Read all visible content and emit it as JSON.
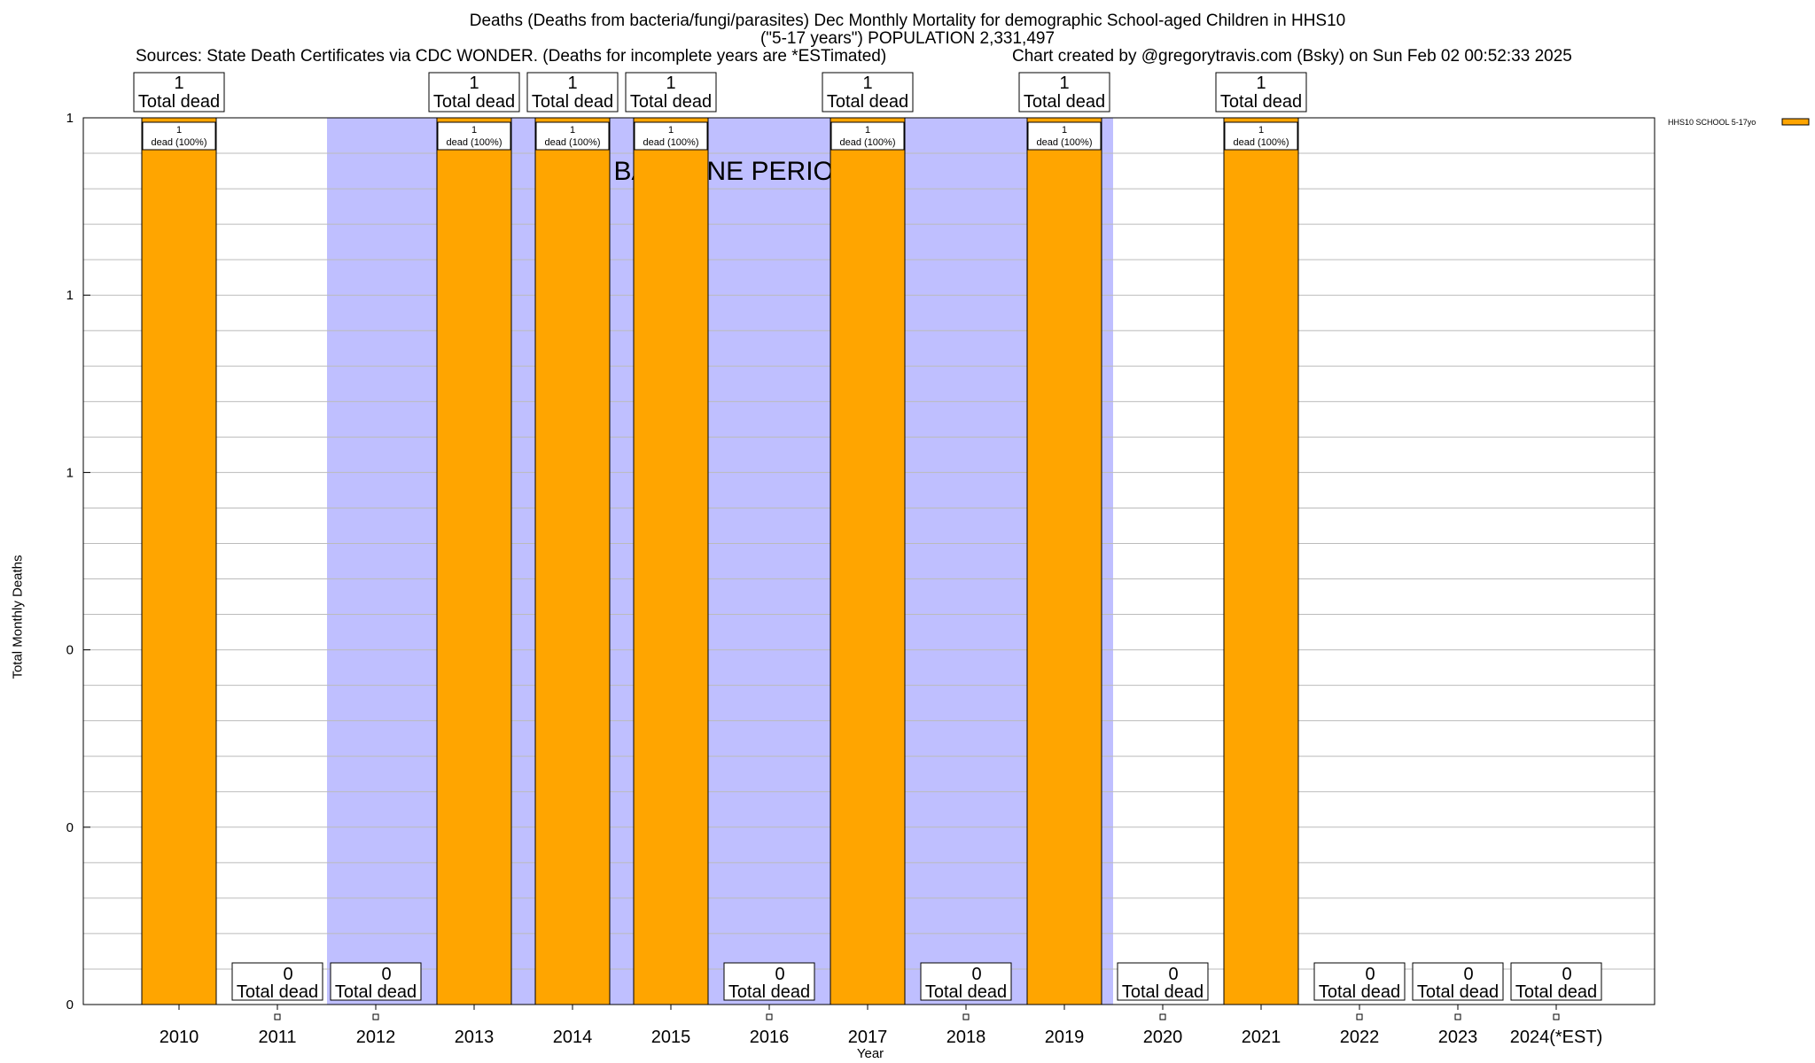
{
  "header": {
    "title_line1": "Deaths (Deaths from bacteria/fungi/parasites) Dec Monthly Mortality for demographic School-aged Children in HHS10",
    "title_line2": "(\"5-17 years\") POPULATION 2,331,497",
    "sources": "Sources: State Death Certificates via CDC WONDER. (Deaths for incomplete years are *ESTimated)",
    "credit": "Chart created by @gregorytravis.com (Bsky) on Sun Feb 02 00:52:33 2025"
  },
  "chart_data": {
    "type": "bar",
    "title": "Deaths (Deaths from bacteria/fungi/parasites) Dec Monthly Mortality for demographic School-aged Children in HHS10",
    "xlabel": "Year",
    "ylabel": "Total Monthly Deaths",
    "ylim": [
      0,
      1
    ],
    "y_tick_labels": [
      "0",
      "0",
      "0",
      "1",
      "1",
      "1"
    ],
    "categories": [
      "2010",
      "2011",
      "2012",
      "2013",
      "2014",
      "2015",
      "2016",
      "2017",
      "2018",
      "2019",
      "2020",
      "2021",
      "2022",
      "2023",
      "2024(*EST)"
    ],
    "series": [
      {
        "name": "HHS10 SCHOOL 5-17yo",
        "color": "#ffa500",
        "values": [
          1,
          0,
          0,
          1,
          1,
          1,
          0,
          1,
          0,
          1,
          0,
          1,
          0,
          0,
          0
        ]
      }
    ],
    "total_label": "Total dead",
    "inner_label": "dead (100%)",
    "baseline_label": "BASELINE PERIOD",
    "baseline_color": "#bfbfff",
    "baseline_years": [
      "2012",
      "2019"
    ],
    "grid": true,
    "legend": "top-right"
  }
}
